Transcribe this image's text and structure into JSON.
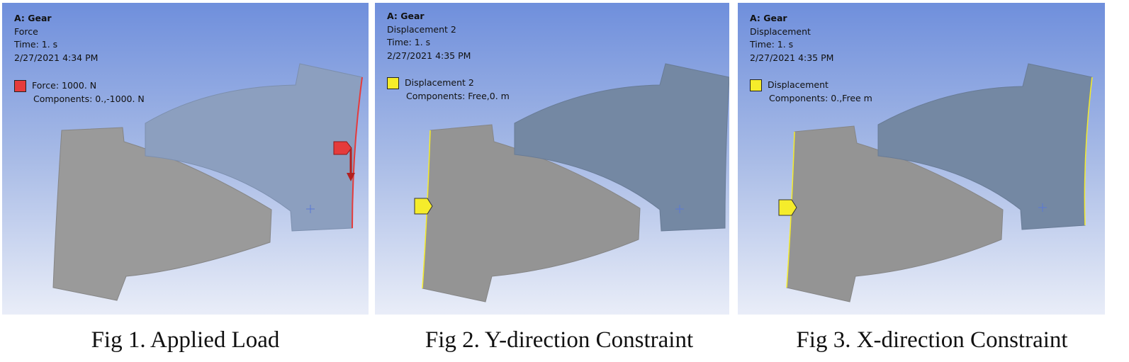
{
  "colors": {
    "force": "#e53b3b",
    "displacement": "#f5ec2b",
    "gear_left": "#9a9a9a",
    "gear_right_1": "#8c9fbf",
    "gear_right_dark": "#7488a3"
  },
  "icons": {
    "force_marker": "force-arrow-icon",
    "displacement_marker": "displacement-pentagon-icon",
    "origin": "crosshair-icon"
  },
  "panels": [
    {
      "header": "A: Gear",
      "analysis": "Force",
      "time": "Time: 1. s",
      "date": "2/27/2021 4:34 PM",
      "legend_label": "Force: 1000. N",
      "legend_components": "Components: 0.,-1000. N",
      "caption": "Fig 1. Applied Load"
    },
    {
      "header": "A: Gear",
      "analysis": "Displacement 2",
      "time": "Time: 1. s",
      "date": "2/27/2021 4:35 PM",
      "legend_label": "Displacement 2",
      "legend_components": "Components: Free,0. m",
      "caption": "Fig 2. Y-direction Constraint"
    },
    {
      "header": "A: Gear",
      "analysis": "Displacement",
      "time": "Time: 1. s",
      "date": "2/27/2021 4:35 PM",
      "legend_label": "Displacement",
      "legend_components": "Components: 0.,Free m",
      "caption": "Fig 3. X-direction Constraint"
    }
  ]
}
